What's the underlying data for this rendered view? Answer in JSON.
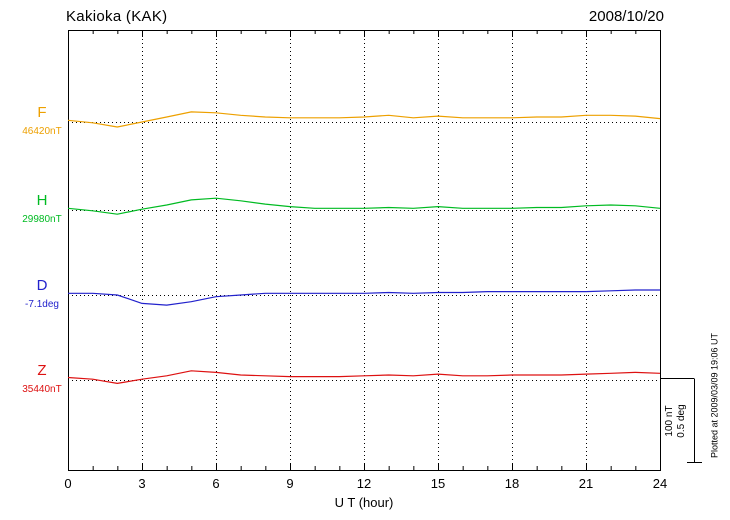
{
  "header": {
    "station": "Kakioka (KAK)",
    "date": "2008/10/20"
  },
  "xaxis": {
    "label": "U T (hour)"
  },
  "scale_bar": {
    "line1": "100 nT",
    "line2": "0.5 deg"
  },
  "footer_note": "Plotted at 2009/03/09 19:06 UT",
  "colors": {
    "F": "#eda000",
    "H": "#00bb22",
    "D": "#2222cc",
    "Z": "#dd1111",
    "axis": "#000000"
  },
  "chart_data": {
    "type": "line",
    "title": "Kakioka (KAK) magnetogram",
    "date": "2008/10/20",
    "xlabel": "U T (hour)",
    "x_range": [
      0,
      24
    ],
    "x_ticks": [
      0,
      3,
      6,
      9,
      12,
      15,
      18,
      21,
      24
    ],
    "grid": "vertical-dotted-every-3h",
    "scale_reference": {
      "nT_per_bar": 100,
      "deg_per_bar": 0.5
    },
    "series": [
      {
        "name": "F",
        "unit": "nT",
        "color": "#eda000",
        "baseline_label": "46420nT",
        "baseline_value": 46420,
        "x": [
          0,
          1,
          2,
          3,
          4,
          5,
          6,
          7,
          8,
          9,
          10,
          11,
          12,
          13,
          14,
          15,
          16,
          17,
          18,
          19,
          20,
          21,
          22,
          23,
          24
        ],
        "offsets": [
          2,
          -1,
          -6,
          0,
          6,
          12,
          11,
          8,
          6,
          5,
          5,
          5,
          6,
          8,
          5,
          7,
          5,
          5,
          5,
          6,
          6,
          8,
          8,
          7,
          4
        ]
      },
      {
        "name": "H",
        "unit": "nT",
        "color": "#00bb22",
        "baseline_label": "29980nT",
        "baseline_value": 29980,
        "x": [
          0,
          1,
          2,
          3,
          4,
          5,
          6,
          7,
          8,
          9,
          10,
          11,
          12,
          13,
          14,
          15,
          16,
          17,
          18,
          19,
          20,
          21,
          22,
          23,
          24
        ],
        "offsets": [
          2,
          -1,
          -5,
          1,
          6,
          12,
          14,
          11,
          7,
          4,
          2,
          2,
          2,
          3,
          2,
          4,
          2,
          2,
          2,
          3,
          3,
          5,
          6,
          5,
          2
        ]
      },
      {
        "name": "D",
        "unit": "deg",
        "color": "#2222cc",
        "baseline_label": "-7.1deg",
        "baseline_value": -7.1,
        "x": [
          0,
          1,
          2,
          3,
          4,
          5,
          6,
          7,
          8,
          9,
          10,
          11,
          12,
          13,
          14,
          15,
          16,
          17,
          18,
          19,
          20,
          21,
          22,
          23,
          24
        ],
        "offsets": [
          0.01,
          0.01,
          0,
          -0.05,
          -0.06,
          -0.04,
          -0.01,
          0,
          0.01,
          0.01,
          0.01,
          0.01,
          0.01,
          0.015,
          0.01,
          0.015,
          0.015,
          0.02,
          0.02,
          0.02,
          0.02,
          0.02,
          0.025,
          0.03,
          0.03
        ]
      },
      {
        "name": "Z",
        "unit": "nT",
        "color": "#dd1111",
        "baseline_label": "35440nT",
        "baseline_value": 35440,
        "x": [
          0,
          1,
          2,
          3,
          4,
          5,
          6,
          7,
          8,
          9,
          10,
          11,
          12,
          13,
          14,
          15,
          16,
          17,
          18,
          19,
          20,
          21,
          22,
          23,
          24
        ],
        "offsets": [
          3,
          1,
          -4,
          1,
          5,
          11,
          9,
          6,
          5,
          4,
          4,
          4,
          5,
          6,
          5,
          7,
          5,
          5,
          6,
          6,
          6,
          7,
          8,
          9,
          8
        ]
      }
    ]
  }
}
